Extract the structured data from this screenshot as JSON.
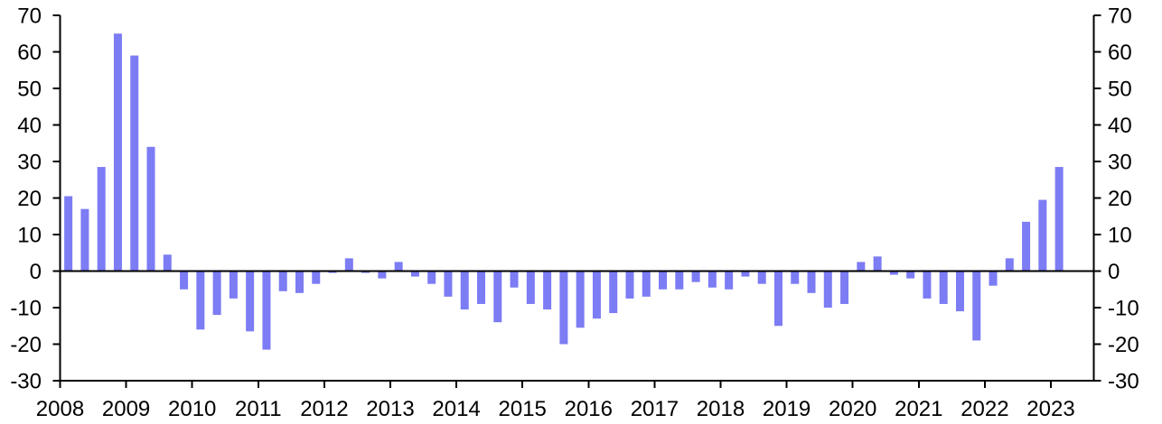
{
  "chart_data": {
    "type": "bar",
    "title": "",
    "subtitle": "",
    "xlabel": "",
    "ylabel": "",
    "legend": "none",
    "grid": "off",
    "ylim": [
      -30,
      70
    ],
    "y_tick_interval": 10,
    "y_ticks": [
      70,
      60,
      50,
      40,
      30,
      20,
      10,
      0,
      -10,
      -20,
      -30
    ],
    "y_tick_labels_left": [
      "70",
      "60",
      "50",
      "40",
      "30",
      "20",
      "10",
      "0",
      "-10",
      "-20",
      "-30"
    ],
    "y_tick_labels_right": [
      "70",
      "60",
      "50",
      "40",
      "30",
      "20",
      "10",
      "0",
      "-10",
      "-20",
      "-30"
    ],
    "x_tick_labels": [
      "2008",
      "2009",
      "2010",
      "2011",
      "2012",
      "2013",
      "2014",
      "2015",
      "2016",
      "2017",
      "2018",
      "2019",
      "2020",
      "2021",
      "2022",
      "2023"
    ],
    "bar_color": "#7C7CF4",
    "axis_color": "#000000",
    "background_color": "#FFFFFF",
    "categories": [
      "2008 Q1",
      "2008 Q2",
      "2008 Q3",
      "2008 Q4",
      "2009 Q1",
      "2009 Q2",
      "2009 Q3",
      "2009 Q4",
      "2010 Q1",
      "2010 Q2",
      "2010 Q3",
      "2010 Q4",
      "2011 Q1",
      "2011 Q2",
      "2011 Q3",
      "2011 Q4",
      "2012 Q1",
      "2012 Q2",
      "2012 Q3",
      "2012 Q4",
      "2013 Q1",
      "2013 Q2",
      "2013 Q3",
      "2013 Q4",
      "2014 Q1",
      "2014 Q2",
      "2014 Q3",
      "2014 Q4",
      "2015 Q1",
      "2015 Q2",
      "2015 Q3",
      "2015 Q4",
      "2016 Q1",
      "2016 Q2",
      "2016 Q3",
      "2016 Q4",
      "2017 Q1",
      "2017 Q2",
      "2017 Q3",
      "2017 Q4",
      "2018 Q1",
      "2018 Q2",
      "2018 Q3",
      "2018 Q4",
      "2019 Q1",
      "2019 Q2",
      "2019 Q3",
      "2019 Q4",
      "2020 Q1",
      "2020 Q2",
      "2020 Q3",
      "2020 Q4",
      "2021 Q1",
      "2021 Q2",
      "2021 Q3",
      "2021 Q4",
      "2022 Q1",
      "2022 Q2",
      "2022 Q3",
      "2022 Q4",
      "2023 Q1"
    ],
    "values": [
      20.5,
      17,
      28.5,
      65,
      59,
      34,
      4.5,
      -5,
      -16,
      -12,
      -7.5,
      -16.5,
      -21.5,
      -5.5,
      -6,
      -3.5,
      -0.5,
      3.5,
      -0.5,
      -2,
      2.5,
      -1.5,
      -3.5,
      -7,
      -10.5,
      -9,
      -14,
      -4.5,
      -9,
      -10.5,
      -20,
      -15.5,
      -13,
      -11.5,
      -7.5,
      -7,
      -5,
      -5,
      -3,
      -4.5,
      -5,
      -1.5,
      -3.5,
      -15,
      -3.5,
      -6,
      -10,
      -9,
      2.5,
      4,
      -1,
      -2,
      -7.5,
      -9,
      -11,
      -19,
      -4,
      3.5,
      13.5,
      19.5,
      28.5
    ]
  }
}
